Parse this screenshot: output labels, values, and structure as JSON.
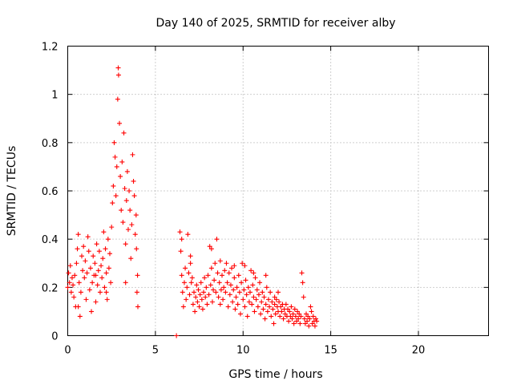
{
  "chart_data": {
    "type": "scatter",
    "title": "Day 140 of 2025, SRMTID for receiver alby",
    "xlabel": "GPS time / hours",
    "ylabel": "SRMTID / TECUs",
    "xlim": [
      0,
      24
    ],
    "ylim": [
      0,
      1.2
    ],
    "xticks": [
      0,
      5,
      10,
      15,
      20
    ],
    "xtick_labels": [
      "0",
      "5",
      "10",
      "15",
      "20"
    ],
    "yticks": [
      0,
      0.2,
      0.4,
      0.6,
      0.8,
      1.0,
      1.2
    ],
    "ytick_labels": [
      "0",
      "0.2",
      "0.4",
      "0.6",
      "0.8",
      "1",
      "1.2"
    ],
    "grid": true,
    "marker": "+",
    "marker_color": "#ff0000",
    "series": [
      {
        "name": "SRMTID",
        "points": [
          [
            0.0,
            0.2
          ],
          [
            0.05,
            0.26
          ],
          [
            0.1,
            0.22
          ],
          [
            0.15,
            0.29
          ],
          [
            0.2,
            0.18
          ],
          [
            0.25,
            0.24
          ],
          [
            0.3,
            0.21
          ],
          [
            0.35,
            0.16
          ],
          [
            0.4,
            0.25
          ],
          [
            0.45,
            0.12
          ],
          [
            0.5,
            0.3
          ],
          [
            0.55,
            0.36
          ],
          [
            0.6,
            0.42
          ],
          [
            0.65,
            0.22
          ],
          [
            0.7,
            0.08
          ],
          [
            0.75,
            0.18
          ],
          [
            0.8,
            0.33
          ],
          [
            0.85,
            0.27
          ],
          [
            0.9,
            0.37
          ],
          [
            0.95,
            0.24
          ],
          [
            1.0,
            0.31
          ],
          [
            1.05,
            0.15
          ],
          [
            1.1,
            0.26
          ],
          [
            1.15,
            0.41
          ],
          [
            1.2,
            0.35
          ],
          [
            1.25,
            0.19
          ],
          [
            1.3,
            0.28
          ],
          [
            1.35,
            0.1
          ],
          [
            1.4,
            0.22
          ],
          [
            1.45,
            0.33
          ],
          [
            1.5,
            0.25
          ],
          [
            1.55,
            0.3
          ],
          [
            1.6,
            0.14
          ],
          [
            1.65,
            0.38
          ],
          [
            1.7,
            0.21
          ],
          [
            1.75,
            0.27
          ],
          [
            1.8,
            0.35
          ],
          [
            1.85,
            0.18
          ],
          [
            1.9,
            0.29
          ],
          [
            1.95,
            0.24
          ],
          [
            2.0,
            0.32
          ],
          [
            2.05,
            0.43
          ],
          [
            2.1,
            0.2
          ],
          [
            2.15,
            0.36
          ],
          [
            2.2,
            0.26
          ],
          [
            2.25,
            0.15
          ],
          [
            2.3,
            0.4
          ],
          [
            2.35,
            0.28
          ],
          [
            2.4,
            0.34
          ],
          [
            2.45,
            0.22
          ],
          [
            2.5,
            0.45
          ],
          [
            2.55,
            0.55
          ],
          [
            2.6,
            0.62
          ],
          [
            2.65,
            0.8
          ],
          [
            2.7,
            0.74
          ],
          [
            2.75,
            0.58
          ],
          [
            2.8,
            0.7
          ],
          [
            2.85,
            0.98
          ],
          [
            2.88,
            1.11
          ],
          [
            2.9,
            1.08
          ],
          [
            2.95,
            0.88
          ],
          [
            3.0,
            0.66
          ],
          [
            3.05,
            0.52
          ],
          [
            3.1,
            0.72
          ],
          [
            3.15,
            0.47
          ],
          [
            3.2,
            0.84
          ],
          [
            3.25,
            0.61
          ],
          [
            3.3,
            0.38
          ],
          [
            3.35,
            0.56
          ],
          [
            3.4,
            0.68
          ],
          [
            3.45,
            0.44
          ],
          [
            3.5,
            0.6
          ],
          [
            3.55,
            0.52
          ],
          [
            3.6,
            0.32
          ],
          [
            3.65,
            0.46
          ],
          [
            3.7,
            0.75
          ],
          [
            3.75,
            0.64
          ],
          [
            3.8,
            0.58
          ],
          [
            3.85,
            0.42
          ],
          [
            3.9,
            0.5
          ],
          [
            3.95,
            0.18
          ],
          [
            4.0,
            0.12
          ],
          [
            3.98,
            0.25
          ],
          [
            3.92,
            0.36
          ],
          [
            3.3,
            0.22
          ],
          [
            2.2,
            0.18
          ],
          [
            1.6,
            0.25
          ],
          [
            0.6,
            0.12
          ],
          [
            6.2,
            0.0
          ],
          [
            6.4,
            0.43
          ],
          [
            6.45,
            0.35
          ],
          [
            6.5,
            0.25
          ],
          [
            6.55,
            0.18
          ],
          [
            6.6,
            0.12
          ],
          [
            6.65,
            0.22
          ],
          [
            6.7,
            0.28
          ],
          [
            6.75,
            0.15
          ],
          [
            6.8,
            0.2
          ],
          [
            6.85,
            0.42
          ],
          [
            6.9,
            0.26
          ],
          [
            6.95,
            0.17
          ],
          [
            7.0,
            0.3
          ],
          [
            7.05,
            0.22
          ],
          [
            7.1,
            0.24
          ],
          [
            7.15,
            0.13
          ],
          [
            7.2,
            0.18
          ],
          [
            7.25,
            0.1
          ],
          [
            7.3,
            0.16
          ],
          [
            7.35,
            0.21
          ],
          [
            7.4,
            0.14
          ],
          [
            7.45,
            0.19
          ],
          [
            7.5,
            0.12
          ],
          [
            7.55,
            0.17
          ],
          [
            7.6,
            0.22
          ],
          [
            7.65,
            0.15
          ],
          [
            7.7,
            0.11
          ],
          [
            7.75,
            0.18
          ],
          [
            7.8,
            0.24
          ],
          [
            7.85,
            0.16
          ],
          [
            7.9,
            0.2
          ],
          [
            7.95,
            0.13
          ],
          [
            8.0,
            0.25
          ],
          [
            8.05,
            0.17
          ],
          [
            8.1,
            0.37
          ],
          [
            8.15,
            0.21
          ],
          [
            8.2,
            0.28
          ],
          [
            8.25,
            0.14
          ],
          [
            8.3,
            0.19
          ],
          [
            8.35,
            0.23
          ],
          [
            8.4,
            0.3
          ],
          [
            8.45,
            0.18
          ],
          [
            8.5,
            0.4
          ],
          [
            8.55,
            0.26
          ],
          [
            8.6,
            0.16
          ],
          [
            8.65,
            0.22
          ],
          [
            8.7,
            0.13
          ],
          [
            8.75,
            0.19
          ],
          [
            8.8,
            0.25
          ],
          [
            8.85,
            0.15
          ],
          [
            8.9,
            0.2
          ],
          [
            8.95,
            0.27
          ],
          [
            9.0,
            0.18
          ],
          [
            9.05,
            0.3
          ],
          [
            9.1,
            0.22
          ],
          [
            9.15,
            0.12
          ],
          [
            9.2,
            0.26
          ],
          [
            9.25,
            0.17
          ],
          [
            9.3,
            0.21
          ],
          [
            9.35,
            0.28
          ],
          [
            9.4,
            0.14
          ],
          [
            9.45,
            0.19
          ],
          [
            9.5,
            0.24
          ],
          [
            9.55,
            0.11
          ],
          [
            9.6,
            0.16
          ],
          [
            9.65,
            0.2
          ],
          [
            9.7,
            0.13
          ],
          [
            9.75,
            0.25
          ],
          [
            9.8,
            0.18
          ],
          [
            9.85,
            0.09
          ],
          [
            9.9,
            0.22
          ],
          [
            9.95,
            0.3
          ],
          [
            10.0,
            0.15
          ],
          [
            10.05,
            0.19
          ],
          [
            10.1,
            0.12
          ],
          [
            10.15,
            0.23
          ],
          [
            10.2,
            0.17
          ],
          [
            10.25,
            0.08
          ],
          [
            10.3,
            0.2
          ],
          [
            10.35,
            0.14
          ],
          [
            10.4,
            0.18
          ],
          [
            10.45,
            0.27
          ],
          [
            10.5,
            0.13
          ],
          [
            10.55,
            0.21
          ],
          [
            10.6,
            0.16
          ],
          [
            10.65,
            0.1
          ],
          [
            10.7,
            0.24
          ],
          [
            10.75,
            0.15
          ],
          [
            10.8,
            0.19
          ],
          [
            10.85,
            0.12
          ],
          [
            10.9,
            0.17
          ],
          [
            10.95,
            0.22
          ],
          [
            11.0,
            0.09
          ],
          [
            11.05,
            0.14
          ],
          [
            11.1,
            0.18
          ],
          [
            11.15,
            0.11
          ],
          [
            11.2,
            0.16
          ],
          [
            11.25,
            0.07
          ],
          [
            11.3,
            0.13
          ],
          [
            11.35,
            0.2
          ],
          [
            11.4,
            0.1
          ],
          [
            11.45,
            0.15
          ],
          [
            11.5,
            0.12
          ],
          [
            11.55,
            0.18
          ],
          [
            11.6,
            0.08
          ],
          [
            11.65,
            0.14
          ],
          [
            11.7,
            0.11
          ],
          [
            11.75,
            0.05
          ],
          [
            11.8,
            0.13
          ],
          [
            11.85,
            0.09
          ],
          [
            11.9,
            0.15
          ],
          [
            11.95,
            0.12
          ],
          [
            12.0,
            0.1
          ],
          [
            12.05,
            0.14
          ],
          [
            12.1,
            0.08
          ],
          [
            12.15,
            0.12
          ],
          [
            12.2,
            0.1
          ],
          [
            12.25,
            0.13
          ],
          [
            12.3,
            0.07
          ],
          [
            12.35,
            0.11
          ],
          [
            12.4,
            0.09
          ],
          [
            12.45,
            0.13
          ],
          [
            12.5,
            0.08
          ],
          [
            12.55,
            0.11
          ],
          [
            12.6,
            0.06
          ],
          [
            12.65,
            0.1
          ],
          [
            12.7,
            0.08
          ],
          [
            12.75,
            0.12
          ],
          [
            12.8,
            0.07
          ],
          [
            12.85,
            0.09
          ],
          [
            12.9,
            0.05
          ],
          [
            12.95,
            0.11
          ],
          [
            13.0,
            0.08
          ],
          [
            13.05,
            0.06
          ],
          [
            13.1,
            0.1
          ],
          [
            13.15,
            0.07
          ],
          [
            13.2,
            0.09
          ],
          [
            13.25,
            0.05
          ],
          [
            13.3,
            0.08
          ],
          [
            13.35,
            0.26
          ],
          [
            13.4,
            0.22
          ],
          [
            13.45,
            0.16
          ],
          [
            13.5,
            0.07
          ],
          [
            13.55,
            0.05
          ],
          [
            13.6,
            0.09
          ],
          [
            13.65,
            0.06
          ],
          [
            13.7,
            0.08
          ],
          [
            13.75,
            0.04
          ],
          [
            13.8,
            0.07
          ],
          [
            13.85,
            0.12
          ],
          [
            13.9,
            0.1
          ],
          [
            13.95,
            0.05
          ],
          [
            14.0,
            0.08
          ],
          [
            14.05,
            0.06
          ],
          [
            14.1,
            0.04
          ],
          [
            14.15,
            0.07
          ],
          [
            14.2,
            0.06
          ],
          [
            9.5,
            0.29
          ],
          [
            10.6,
            0.26
          ],
          [
            11.3,
            0.25
          ],
          [
            12.0,
            0.18
          ],
          [
            8.2,
            0.36
          ],
          [
            6.5,
            0.4
          ],
          [
            7.0,
            0.33
          ],
          [
            8.7,
            0.31
          ],
          [
            10.1,
            0.29
          ],
          [
            11.8,
            0.16
          ]
        ]
      }
    ]
  }
}
